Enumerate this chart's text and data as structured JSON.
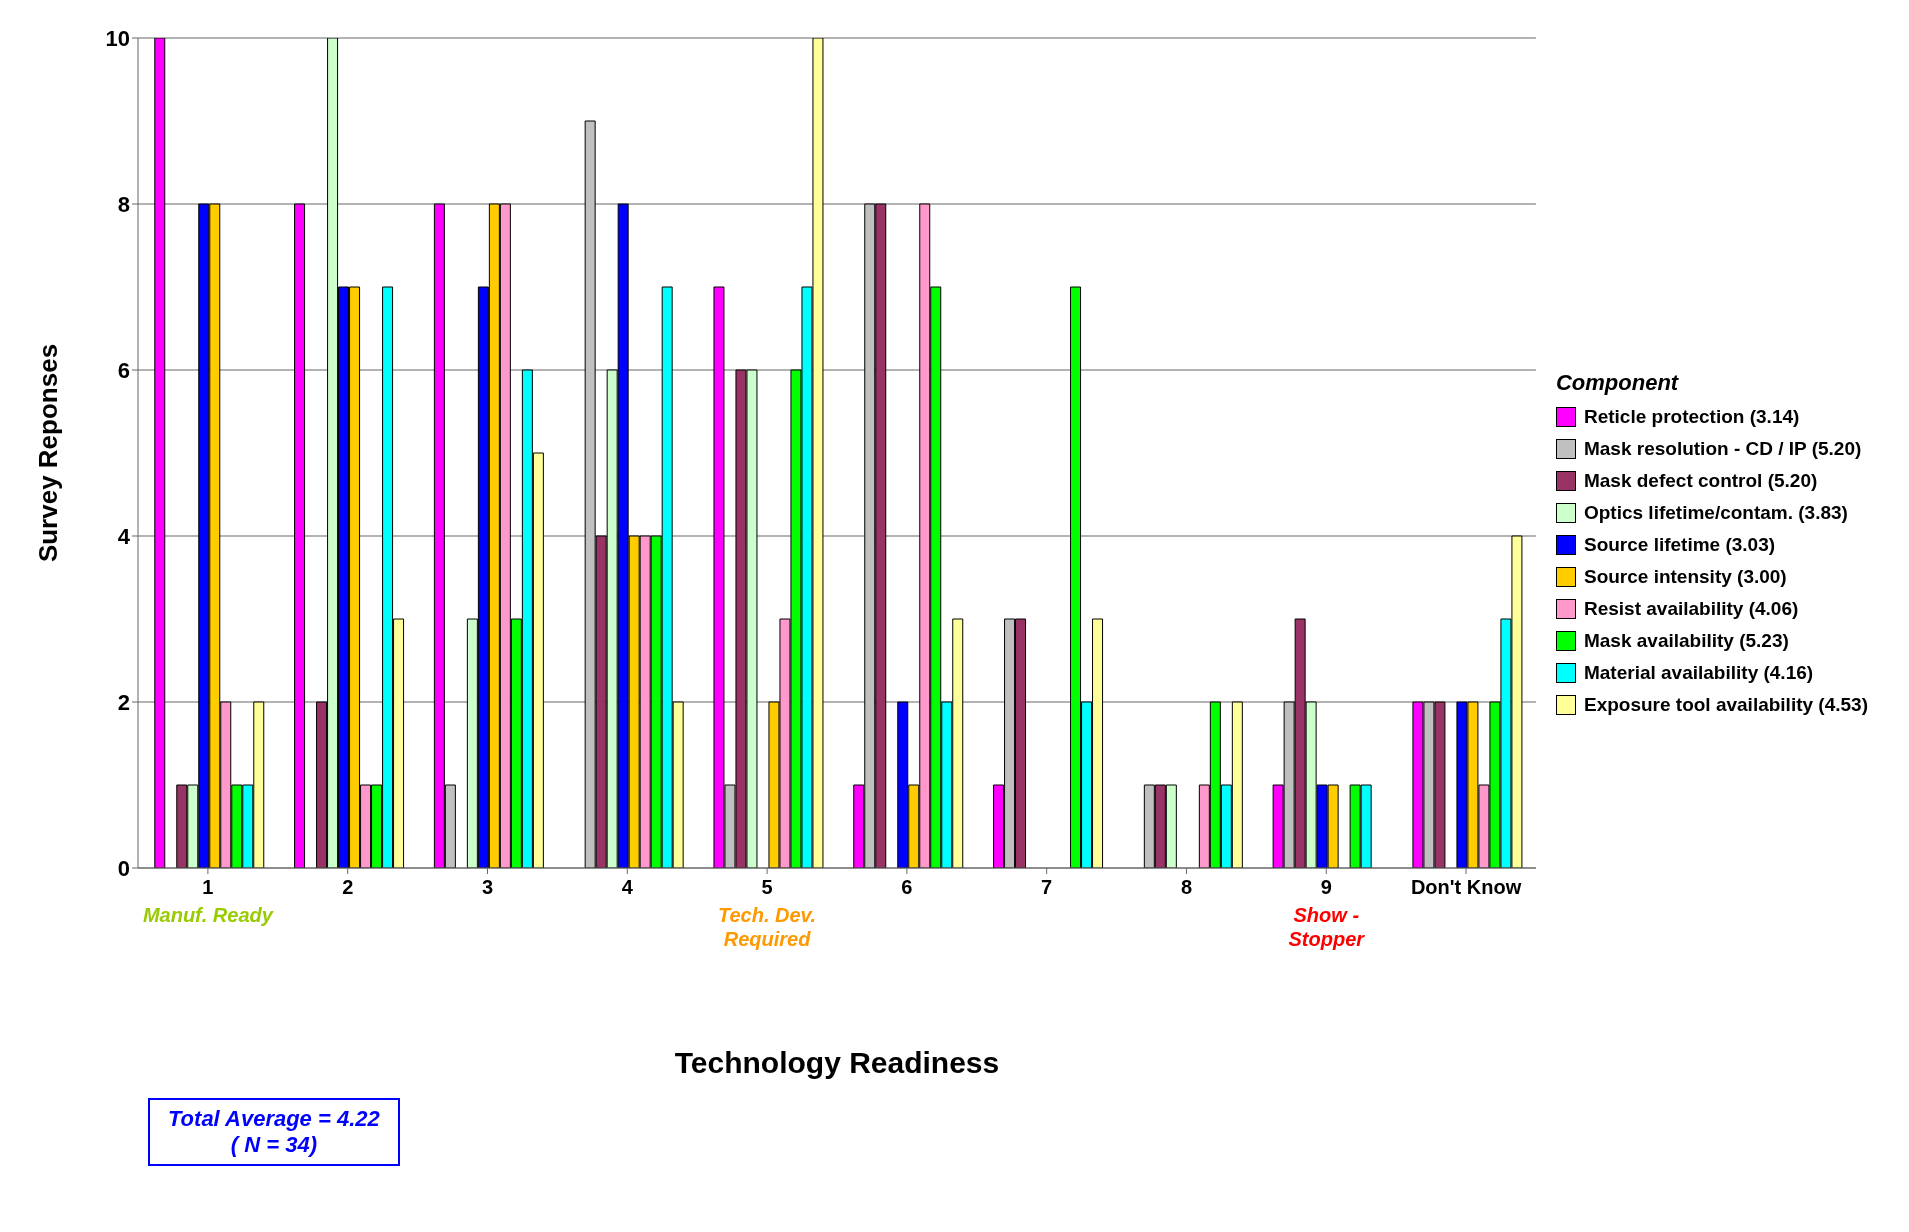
{
  "chart_data": {
    "type": "bar",
    "xlabel": "Technology Readiness",
    "ylabel": "Survey Reponses",
    "legend_title": "Component",
    "categories": [
      "1",
      "2",
      "3",
      "4",
      "5",
      "6",
      "7",
      "8",
      "9",
      "Don't Know"
    ],
    "series": [
      {
        "name": "Reticle protection (3.14)",
        "color": "#ff00ff",
        "values": [
          10,
          8,
          8,
          0,
          7,
          1,
          1,
          0,
          1,
          2
        ]
      },
      {
        "name": "Mask resolution - CD / IP (5.20)",
        "color": "#c0c0c0",
        "values": [
          0,
          0,
          1,
          9,
          1,
          8,
          3,
          1,
          2,
          2
        ]
      },
      {
        "name": "Mask defect control (5.20)",
        "color": "#993366",
        "values": [
          1,
          2,
          0,
          4,
          6,
          8,
          3,
          1,
          3,
          2
        ]
      },
      {
        "name": "Optics lifetime/contam. (3.83)",
        "color": "#ccffcc",
        "values": [
          1,
          10,
          3,
          6,
          6,
          0,
          0,
          1,
          2,
          0
        ]
      },
      {
        "name": "Source lifetime (3.03)",
        "color": "#0000ff",
        "values": [
          8,
          7,
          7,
          8,
          0,
          2,
          0,
          0,
          1,
          2
        ]
      },
      {
        "name": "Source intensity  (3.00)",
        "color": "#ffcc00",
        "values": [
          8,
          7,
          8,
          4,
          2,
          1,
          0,
          0,
          1,
          2
        ]
      },
      {
        "name": "Resist availability (4.06)",
        "color": "#ff99cc",
        "values": [
          2,
          1,
          8,
          4,
          3,
          8,
          0,
          1,
          0,
          1
        ]
      },
      {
        "name": "Mask availability (5.23)",
        "color": "#00ff00",
        "values": [
          1,
          1,
          3,
          4,
          6,
          7,
          7,
          2,
          1,
          2
        ]
      },
      {
        "name": "Material availability (4.16)",
        "color": "#00ffff",
        "values": [
          1,
          7,
          6,
          7,
          7,
          2,
          2,
          1,
          1,
          3
        ]
      },
      {
        "name": "Exposure tool availability (4.53)",
        "color": "#ffff99",
        "values": [
          2,
          3,
          5,
          2,
          10,
          3,
          3,
          2,
          0,
          4
        ]
      }
    ],
    "ylim": [
      0,
      10
    ],
    "yticks": [
      0,
      2,
      4,
      6,
      8,
      10
    ],
    "grid": "y",
    "legend": "right",
    "annotations": [
      "Manuf. Ready",
      "Tech. Dev. Required",
      "Show - Stopper",
      "Total Average = 4.22\n( N = 34)"
    ]
  }
}
